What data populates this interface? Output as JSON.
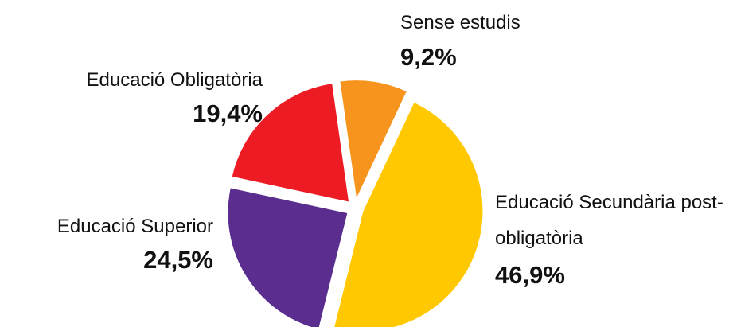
{
  "chart_data": {
    "type": "pie",
    "categories": [
      "Sense estudis",
      "Educació Secundària post-obligatòria",
      "Educació Superior",
      "Educació Obligatòria"
    ],
    "values": [
      9.2,
      46.9,
      24.5,
      19.4
    ],
    "value_labels": [
      "9,2%",
      "46,9%",
      "24,5%",
      "19,4%"
    ],
    "colors": [
      "#f7941d",
      "#ffc800",
      "#5b2d8e",
      "#ed1c24"
    ]
  }
}
